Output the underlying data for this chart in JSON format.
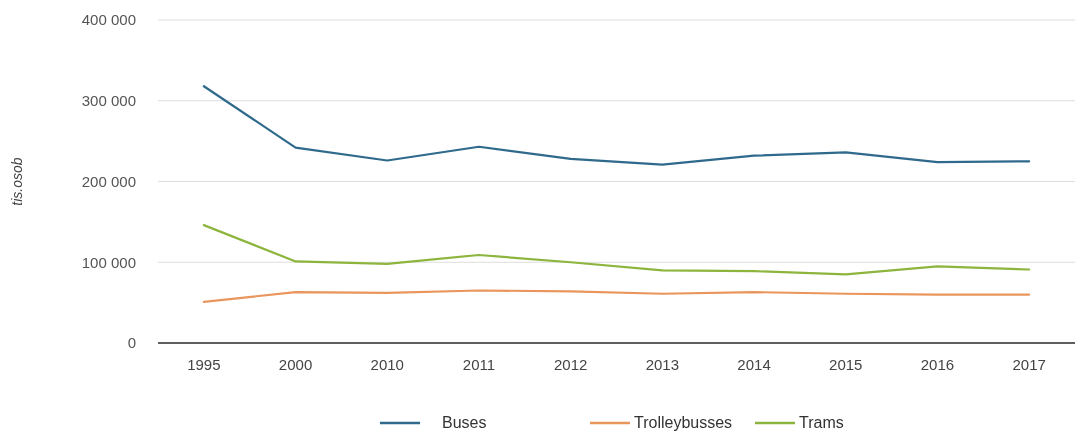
{
  "chart_data": {
    "type": "line",
    "ylabel": "tis.osob",
    "categories": [
      "1995",
      "2000",
      "2010",
      "2011",
      "2012",
      "2013",
      "2014",
      "2015",
      "2016",
      "2017"
    ],
    "series": [
      {
        "name": "Buses",
        "color": "#2f6a8c",
        "values": [
          318000,
          242000,
          226000,
          243000,
          228000,
          221000,
          232000,
          236000,
          224000,
          225000
        ]
      },
      {
        "name": "Trolleybusses",
        "color": "#e9955c",
        "values": [
          51000,
          63000,
          62000,
          65000,
          64000,
          61000,
          63000,
          61000,
          60000,
          60000
        ]
      },
      {
        "name": "Trams",
        "color": "#8db53d",
        "values": [
          146000,
          101000,
          98000,
          109000,
          100000,
          90000,
          89000,
          85000,
          95000,
          91000
        ]
      }
    ],
    "ylim": [
      0,
      400000
    ],
    "yticks": [
      {
        "value": 0,
        "label": "0"
      },
      {
        "value": 100000,
        "label": "100 000"
      },
      {
        "value": 200000,
        "label": "200 000"
      },
      {
        "value": 300000,
        "label": "300 000"
      },
      {
        "value": 400000,
        "label": "400 000"
      }
    ],
    "grid": "y",
    "legend": "bottom",
    "marker": "none",
    "line_style": "solid"
  }
}
